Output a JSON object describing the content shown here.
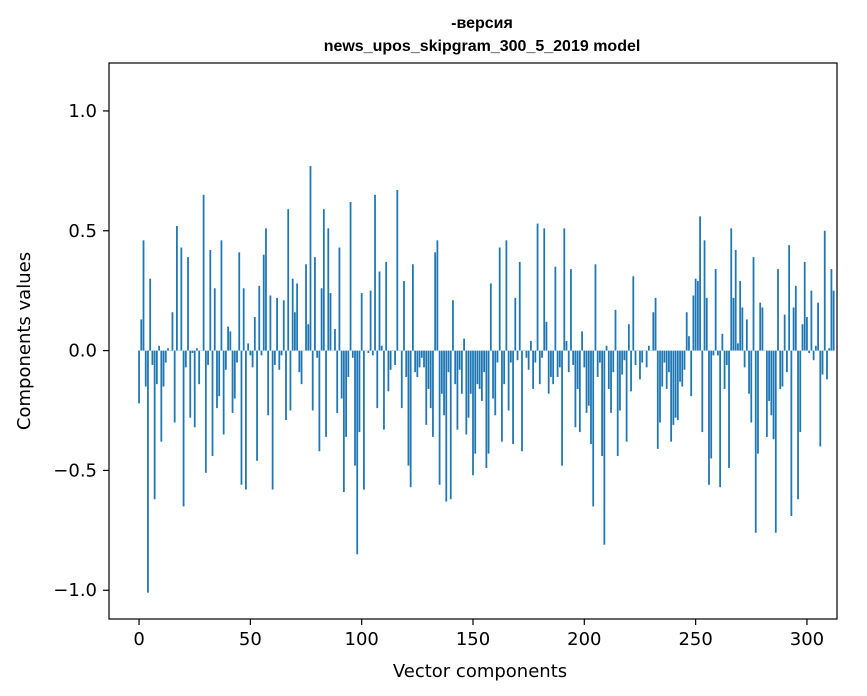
{
  "chart_data": {
    "type": "bar",
    "title_line1": "-версия",
    "title_line2": "news_upos_skipgram_300_5_2019 model",
    "xlabel": "Vector components",
    "ylabel": "Components values",
    "xlim": [
      -13.5,
      313.5
    ],
    "ylim": [
      -1.12,
      1.2
    ],
    "xticks": [
      0,
      50,
      100,
      150,
      200,
      250,
      300
    ],
    "xtick_labels": [
      "0",
      "50",
      "100",
      "150",
      "200",
      "250",
      "300"
    ],
    "yticks": [
      -1.0,
      -0.5,
      0.0,
      0.5,
      1.0
    ],
    "ytick_labels": [
      "−1.0",
      "−0.5",
      "0.0",
      "0.5",
      "1.0"
    ],
    "grid": false,
    "color": "#1f77b4",
    "x_start": 0,
    "values": [
      -0.22,
      0.13,
      0.46,
      -0.15,
      -1.01,
      0.3,
      -0.06,
      -0.62,
      -0.14,
      0.02,
      -0.38,
      -0.15,
      -0.05,
      0.01,
      0.0,
      0.16,
      -0.3,
      0.52,
      0.0,
      0.43,
      -0.65,
      -0.07,
      0.39,
      -0.28,
      -0.01,
      -0.32,
      0.01,
      -0.14,
      0.0,
      0.65,
      -0.51,
      -0.06,
      0.42,
      -0.44,
      0.26,
      -0.24,
      -0.19,
      0.46,
      -0.35,
      -0.08,
      0.1,
      0.08,
      -0.26,
      -0.2,
      -0.05,
      0.41,
      -0.56,
      0.26,
      -0.58,
      0.03,
      -0.02,
      -0.07,
      0.14,
      -0.46,
      0.27,
      -0.02,
      0.4,
      0.51,
      -0.27,
      0.23,
      -0.58,
      -0.06,
      0.22,
      -0.08,
      -0.02,
      0.21,
      -0.29,
      0.59,
      -0.25,
      0.3,
      0.16,
      0.28,
      -0.09,
      -0.14,
      0.0,
      0.36,
      0.11,
      0.77,
      -0.25,
      0.39,
      -0.03,
      -0.42,
      0.26,
      0.59,
      -0.36,
      0.51,
      0.24,
      0.0,
      0.09,
      -0.26,
      0.43,
      -0.2,
      -0.59,
      -0.36,
      -0.11,
      0.62,
      -0.03,
      -0.48,
      -0.85,
      -0.34,
      0.24,
      -0.58,
      0.0,
      -0.01,
      0.25,
      -0.02,
      0.65,
      -0.24,
      0.33,
      0.02,
      -0.33,
      0.37,
      -0.17,
      -0.08,
      0.0,
      -0.06,
      0.67,
      0.0,
      -0.24,
      0.29,
      -0.11,
      -0.48,
      -0.57,
      0.36,
      -0.09,
      -0.11,
      -0.07,
      -0.03,
      -0.07,
      -0.31,
      -0.16,
      -0.24,
      -0.36,
      0.41,
      0.46,
      -0.56,
      -0.18,
      -0.27,
      -0.63,
      -0.09,
      -0.62,
      0.21,
      -0.14,
      -0.33,
      -0.08,
      -0.18,
      0.05,
      -0.35,
      -0.28,
      -0.18,
      -0.52,
      -0.43,
      -0.14,
      -0.16,
      -0.21,
      -0.09,
      -0.49,
      -0.43,
      0.28,
      -0.2,
      -0.27,
      -0.05,
      0.43,
      -0.38,
      -0.14,
      0.46,
      -0.25,
      -0.05,
      -0.39,
      0.22,
      -0.04,
      0.37,
      -0.42,
      0.0,
      -0.03,
      -0.08,
      0.04,
      -0.16,
      -0.05,
      0.53,
      -0.14,
      -0.03,
      0.51,
      0.12,
      -0.18,
      -0.11,
      -0.14,
      0.35,
      -0.11,
      -0.07,
      -0.48,
      0.51,
      0.04,
      -0.09,
      0.34,
      -0.06,
      -0.32,
      -0.16,
      -0.34,
      0.08,
      -0.07,
      -0.26,
      -0.23,
      -0.39,
      -0.65,
      0.36,
      -0.11,
      -0.05,
      -0.44,
      -0.81,
      0.02,
      -0.16,
      -0.26,
      -0.09,
      0.17,
      -0.44,
      -0.25,
      -0.1,
      -0.04,
      -0.38,
      0.11,
      -0.17,
      0.31,
      -0.06,
      0.0,
      -0.12,
      -0.05,
      0.0,
      -0.07,
      0.02,
      0.0,
      0.16,
      0.22,
      -0.41,
      -0.3,
      -0.15,
      -0.05,
      -0.16,
      -0.09,
      -0.38,
      -0.31,
      -0.28,
      -0.29,
      -0.13,
      -0.15,
      -0.08,
      0.16,
      0.06,
      -0.19,
      0.23,
      0.3,
      0.29,
      0.56,
      -0.34,
      0.46,
      0.22,
      -0.56,
      -0.45,
      -0.02,
      0.34,
      -0.02,
      -0.57,
      0.07,
      -0.16,
      -0.06,
      -0.49,
      0.51,
      0.22,
      0.42,
      0.03,
      0.29,
      0.18,
      -0.07,
      0.13,
      -0.18,
      -0.3,
      0.39,
      -0.76,
      -0.43,
      0.2,
      0.18,
      0.0,
      -0.36,
      -0.21,
      -0.27,
      -0.37,
      -0.76,
      0.34,
      -0.16,
      -0.15,
      0.15,
      -0.09,
      0.44,
      -0.69,
      0.18,
      0.27,
      -0.62,
      -0.34,
      0.11,
      0.37,
      0.14,
      -0.01,
      0.25,
      -0.04,
      0.02,
      0.2,
      -0.4,
      -0.1,
      0.5,
      -0.12,
      0.01,
      0.34,
      0.25
    ]
  }
}
